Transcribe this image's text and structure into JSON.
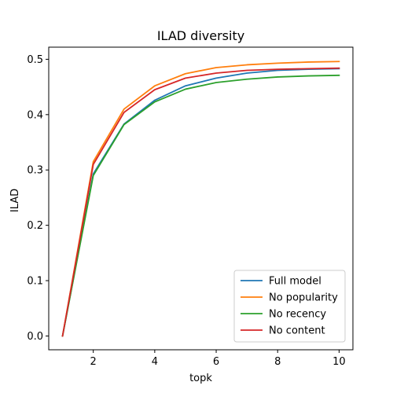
{
  "chart_data": {
    "type": "line",
    "title": "ILAD diversity",
    "xlabel": "topk",
    "ylabel": "ILAD",
    "xlim": [
      0.55,
      10.45
    ],
    "ylim": [
      -0.0249,
      0.5219
    ],
    "xticks": [
      2,
      4,
      6,
      8,
      10
    ],
    "yticks": [
      0.0,
      0.1,
      0.2,
      0.3,
      0.4,
      0.5
    ],
    "ytick_labels": [
      "0.0",
      "0.1",
      "0.2",
      "0.3",
      "0.4",
      "0.5"
    ],
    "xtick_labels": [
      "2",
      "4",
      "6",
      "8",
      "10"
    ],
    "grid": false,
    "legend_position": "lower-right",
    "x": [
      1,
      2,
      3,
      4,
      5,
      6,
      7,
      8,
      9,
      10
    ],
    "series": [
      {
        "name": "Full model",
        "color": "#1f77b4",
        "values": [
          0.0,
          0.293,
          0.383,
          0.426,
          0.452,
          0.466,
          0.475,
          0.48,
          0.482,
          0.483
        ]
      },
      {
        "name": "No popularity",
        "color": "#ff7f0e",
        "values": [
          0.0,
          0.315,
          0.41,
          0.452,
          0.474,
          0.485,
          0.49,
          0.493,
          0.495,
          0.496
        ]
      },
      {
        "name": "No recency",
        "color": "#2ca02c",
        "values": [
          0.0,
          0.29,
          0.382,
          0.423,
          0.446,
          0.458,
          0.464,
          0.468,
          0.47,
          0.471
        ]
      },
      {
        "name": "No content",
        "color": "#d62728",
        "values": [
          0.0,
          0.31,
          0.404,
          0.445,
          0.466,
          0.475,
          0.48,
          0.482,
          0.483,
          0.484
        ]
      }
    ]
  }
}
